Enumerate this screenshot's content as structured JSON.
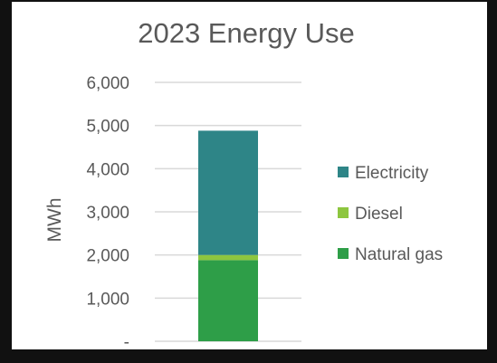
{
  "chart_data": {
    "type": "bar",
    "stacked": true,
    "title": "2023 Energy Use",
    "xlabel": "",
    "ylabel": "MWh",
    "ylim": [
      0,
      6000
    ],
    "y_ticks": [
      0,
      1000,
      2000,
      3000,
      4000,
      5000,
      6000
    ],
    "y_tick_labels": [
      "-",
      "1,000",
      "2,000",
      "3,000",
      "4,000",
      "5,000",
      "6,000"
    ],
    "grid": true,
    "legend_position": "right",
    "categories": [
      ""
    ],
    "series": [
      {
        "name": "Natural gas",
        "values": [
          1880
        ],
        "color": "#2e9e48"
      },
      {
        "name": "Diesel",
        "values": [
          120
        ],
        "color": "#8dc63f"
      },
      {
        "name": "Electricity",
        "values": [
          2880
        ],
        "color": "#2e8587"
      }
    ],
    "legend_order": [
      "Electricity",
      "Diesel",
      "Natural gas"
    ]
  },
  "colors": {
    "frame": "#111111",
    "gridline": "#d9d9d9",
    "text": "#595959"
  }
}
